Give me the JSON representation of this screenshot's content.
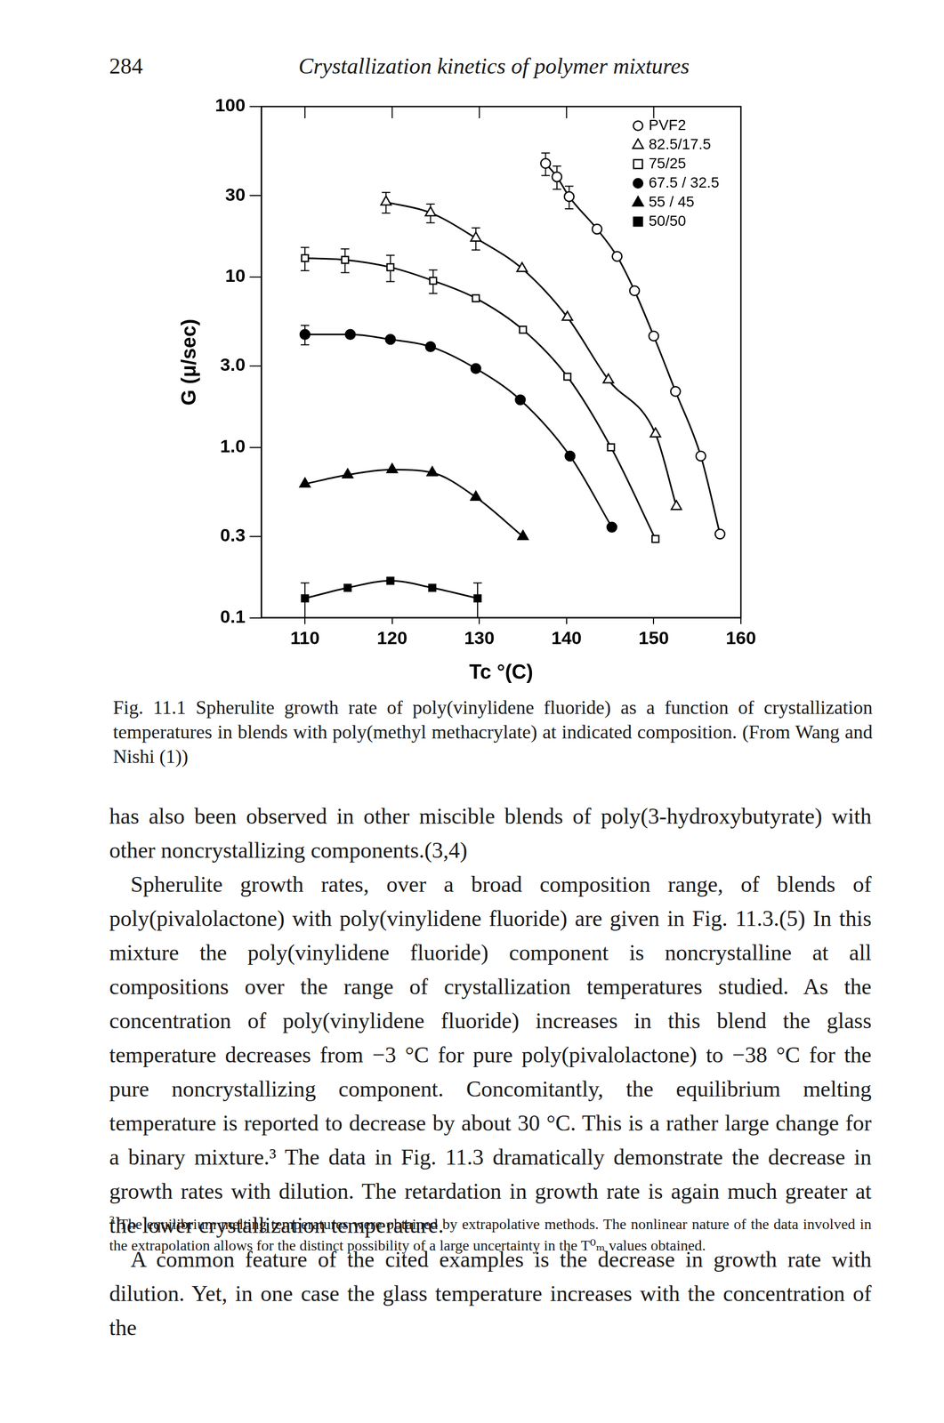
{
  "header": {
    "page_number": "284",
    "running_title": "Crystallization kinetics of polymer mixtures"
  },
  "chart_data": {
    "type": "scatter",
    "x_label": "Tc °(C)",
    "y_label": "G (μ/sec)",
    "xlim": [
      105,
      160
    ],
    "xticks": [
      110,
      120,
      130,
      140,
      150,
      160
    ],
    "ylim": [
      0.1,
      100
    ],
    "yticks": [
      0.1,
      0.3,
      {
        "value": 1,
        "label": "1.0"
      },
      {
        "value": 3,
        "label": "3.0"
      },
      10,
      30,
      100
    ],
    "log": "y",
    "grid": false,
    "legend": "upper right",
    "line_style": "solid",
    "series": [
      {
        "name": "PVF2",
        "marker": "circle_open",
        "color": "#000000",
        "x": [
          137.6,
          138.9,
          140.3,
          143.5,
          145.8,
          147.8,
          150.0,
          152.5,
          155.4,
          157.6
        ],
        "values": [
          46.4,
          38.7,
          29.6,
          19.1,
          13.2,
          8.3,
          4.5,
          2.13,
          0.89,
          0.31
        ],
        "errors": [
          7,
          6,
          4.5,
          null,
          null,
          null,
          null,
          null,
          null,
          null
        ]
      },
      {
        "name": "82.5/17.5",
        "marker": "triangle_open",
        "color": "#000000",
        "x": [
          119.3,
          124.4,
          129.6,
          134.9,
          140.1,
          144.8,
          150.2,
          152.6
        ],
        "values": [
          27.5,
          23.8,
          16.9,
          11.2,
          5.8,
          2.49,
          1.2,
          0.45
        ],
        "errors": [
          3.8,
          3,
          2.5,
          null,
          null,
          null,
          null,
          null
        ]
      },
      {
        "name": "75/25",
        "marker": "square_open",
        "color": "#000000",
        "x": [
          110.0,
          114.6,
          119.8,
          124.7,
          129.6,
          135.0,
          140.1,
          145.1,
          150.2
        ],
        "values": [
          12.9,
          12.6,
          11.4,
          9.5,
          7.5,
          4.9,
          2.6,
          1.0,
          0.29
        ],
        "errors": [
          2,
          2,
          2,
          1.5,
          null,
          null,
          null,
          null,
          null
        ]
      },
      {
        "name": "67.5 / 32.5",
        "marker": "circle",
        "color": "#000000",
        "x": [
          110.0,
          115.2,
          119.8,
          124.4,
          129.6,
          134.7,
          140.4,
          145.2
        ],
        "values": [
          4.6,
          4.6,
          4.3,
          3.9,
          2.9,
          1.9,
          0.89,
          0.34
        ],
        "errors": [
          0.6,
          null,
          null,
          null,
          null,
          null,
          null,
          null
        ]
      },
      {
        "name": "55 / 45",
        "marker": "triangle",
        "color": "#000000",
        "x": [
          110.0,
          114.9,
          120.0,
          124.6,
          129.6,
          135.0
        ],
        "values": [
          0.61,
          0.69,
          0.74,
          0.71,
          0.51,
          0.3
        ]
      },
      {
        "name": "50/50",
        "marker": "square",
        "color": "#000000",
        "x": [
          110.0,
          114.9,
          119.8,
          124.6,
          129.8
        ],
        "values": [
          0.13,
          0.15,
          0.165,
          0.15,
          0.13
        ],
        "errors": [
          0.03,
          null,
          null,
          null,
          0.03
        ]
      }
    ]
  },
  "caption": "Fig. 11.1 Spherulite growth rate of poly(vinylidene fluoride) as a function of crystallization temperatures in blends with poly(methyl methacrylate) at indicated composition. (From Wang and Nishi (1))",
  "paragraphs": [
    "has also been observed in other miscible blends of poly(3-hydroxybutyrate) with other noncrystallizing components.(3,4)",
    "Spherulite growth rates, over a broad composition range, of blends of poly(pivalolactone) with poly(vinylidene fluoride) are given in Fig. 11.3.(5) In this mixture the poly(vinylidene fluoride) component is noncrystalline at all compositions over the range of crystallization temperatures studied. As the concentration of poly(vinylidene fluoride) increases in this blend the glass temperature decreases from −3 °C for pure poly(pivalolactone) to −38 °C for the pure noncrystallizing component. Concomitantly, the equilibrium melting temperature is reported to decrease by about 30 °C. This is a rather large change for a binary mixture.³ The data in Fig. 11.3 dramatically demonstrate the decrease in growth rates with dilution. The retardation in growth rate is again much greater at the lower crystallization temperature.",
    "A common feature of the cited examples is the decrease in growth rate with dilution. Yet, in one case the glass temperature increases with the concentration of the"
  ],
  "footnote": {
    "mark": "3",
    "text": "The equilibrium melting temperatures were obtained by extrapolative methods. The nonlinear nature of the data involved in the extrapolation allows for the distinct possibility of a large uncertainty in the T⁰ₘ values obtained."
  }
}
